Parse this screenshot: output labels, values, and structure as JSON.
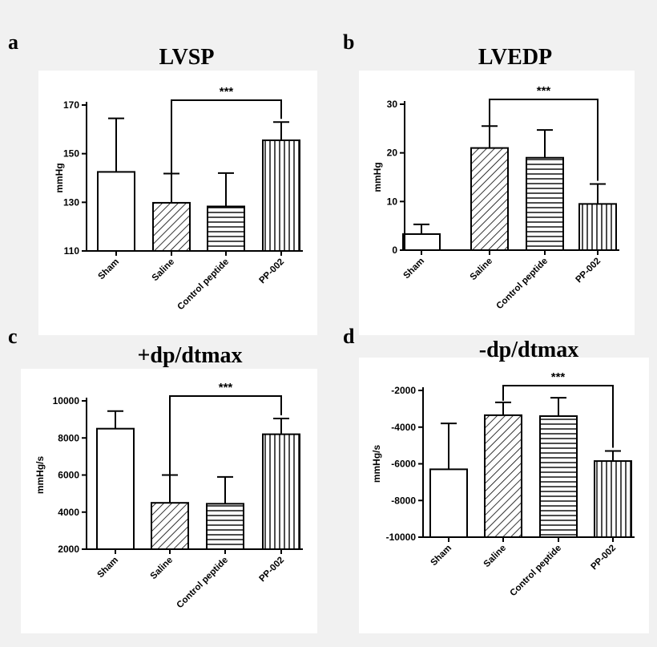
{
  "panels": [
    {
      "letter": "a",
      "chart_data": {
        "type": "bar",
        "title": "LVSP",
        "ylabel": "mmHg",
        "xlabel": "",
        "categories": [
          "Sham",
          "Saline",
          "Control peptide",
          "PP-002"
        ],
        "values": [
          142.5,
          129.8,
          128.3,
          155.5
        ],
        "errors": [
          22,
          12,
          13.7,
          7.5
        ],
        "yticks": [
          110,
          130,
          150,
          170
        ],
        "ylim": [
          110,
          170
        ],
        "patterns": [
          "none",
          "diag",
          "hlines",
          "vlines"
        ],
        "significance": {
          "from": 1,
          "to": 3,
          "label": "***"
        }
      }
    },
    {
      "letter": "b",
      "chart_data": {
        "type": "bar",
        "title": "LVEDP",
        "ylabel": "mmHg",
        "xlabel": "",
        "categories": [
          "Sham",
          "Saline",
          "Control peptide",
          "PP-002"
        ],
        "values": [
          3.3,
          21,
          19,
          9.5
        ],
        "errors": [
          2,
          4.5,
          5.7,
          4.1
        ],
        "yticks": [
          0,
          10,
          20,
          30
        ],
        "ylim": [
          0,
          30
        ],
        "patterns": [
          "none",
          "diag",
          "hlines",
          "vlines"
        ],
        "significance": {
          "from": 1,
          "to": 3,
          "label": "***"
        }
      }
    },
    {
      "letter": "c",
      "chart_data": {
        "type": "bar",
        "title": "+dp/dtmax",
        "ylabel": "mmHg/s",
        "xlabel": "",
        "categories": [
          "Sham",
          "Saline",
          "Control peptide",
          "PP-002"
        ],
        "values": [
          8500,
          4500,
          4450,
          8200
        ],
        "errors": [
          950,
          1500,
          1450,
          850
        ],
        "yticks": [
          2000,
          4000,
          6000,
          8000,
          10000
        ],
        "ylim": [
          2000,
          10000
        ],
        "patterns": [
          "none",
          "diag",
          "hlines",
          "vlines"
        ],
        "significance": {
          "from": 1,
          "to": 3,
          "label": "***"
        }
      }
    },
    {
      "letter": "d",
      "chart_data": {
        "type": "bar",
        "title": "-dp/dtmax",
        "ylabel": "mmHg/s",
        "xlabel": "",
        "categories": [
          "Sham",
          "Saline",
          "Control peptide",
          "PP-002"
        ],
        "values": [
          -6300,
          -3350,
          -3400,
          -5850
        ],
        "errors": [
          2500,
          700,
          1000,
          550
        ],
        "yticks": [
          -2000,
          -4000,
          -6000,
          -8000,
          -10000
        ],
        "ylim": [
          -10000,
          -2000
        ],
        "patterns": [
          "none",
          "diag",
          "hlines",
          "vlines"
        ],
        "significance": {
          "from": 1,
          "to": 3,
          "label": "***"
        }
      }
    }
  ]
}
